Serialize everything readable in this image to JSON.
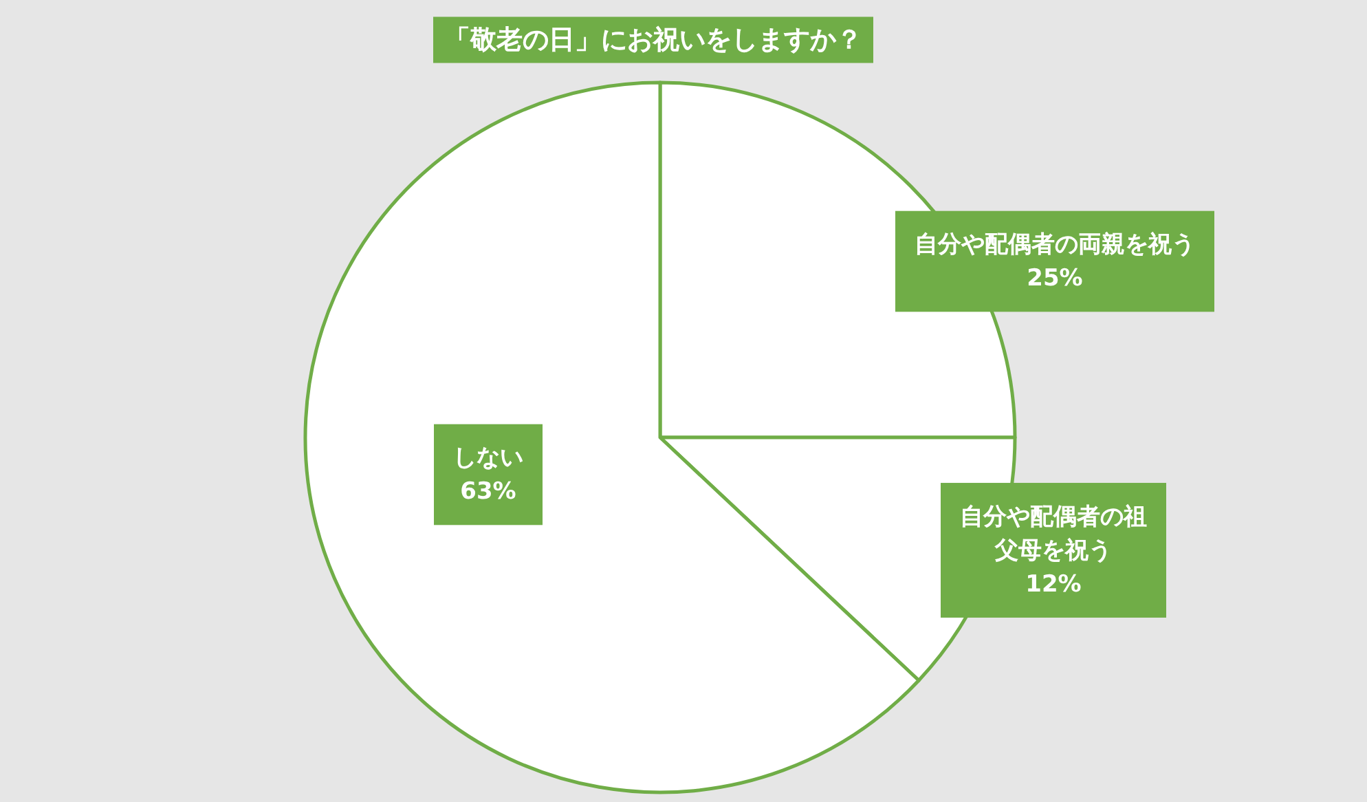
{
  "chart_data": {
    "type": "pie",
    "title": "「敬老の日」にお祝いをしますか？",
    "categories": [
      "自分や配偶者の両親を祝う",
      "自分や配偶者の祖父母を祝う",
      "しない"
    ],
    "values": [
      25,
      12,
      63
    ],
    "colors": [
      "#ffffff",
      "#ffffff",
      "#ffffff"
    ],
    "value_labels": [
      "25%",
      "12%",
      "63%"
    ]
  }
}
